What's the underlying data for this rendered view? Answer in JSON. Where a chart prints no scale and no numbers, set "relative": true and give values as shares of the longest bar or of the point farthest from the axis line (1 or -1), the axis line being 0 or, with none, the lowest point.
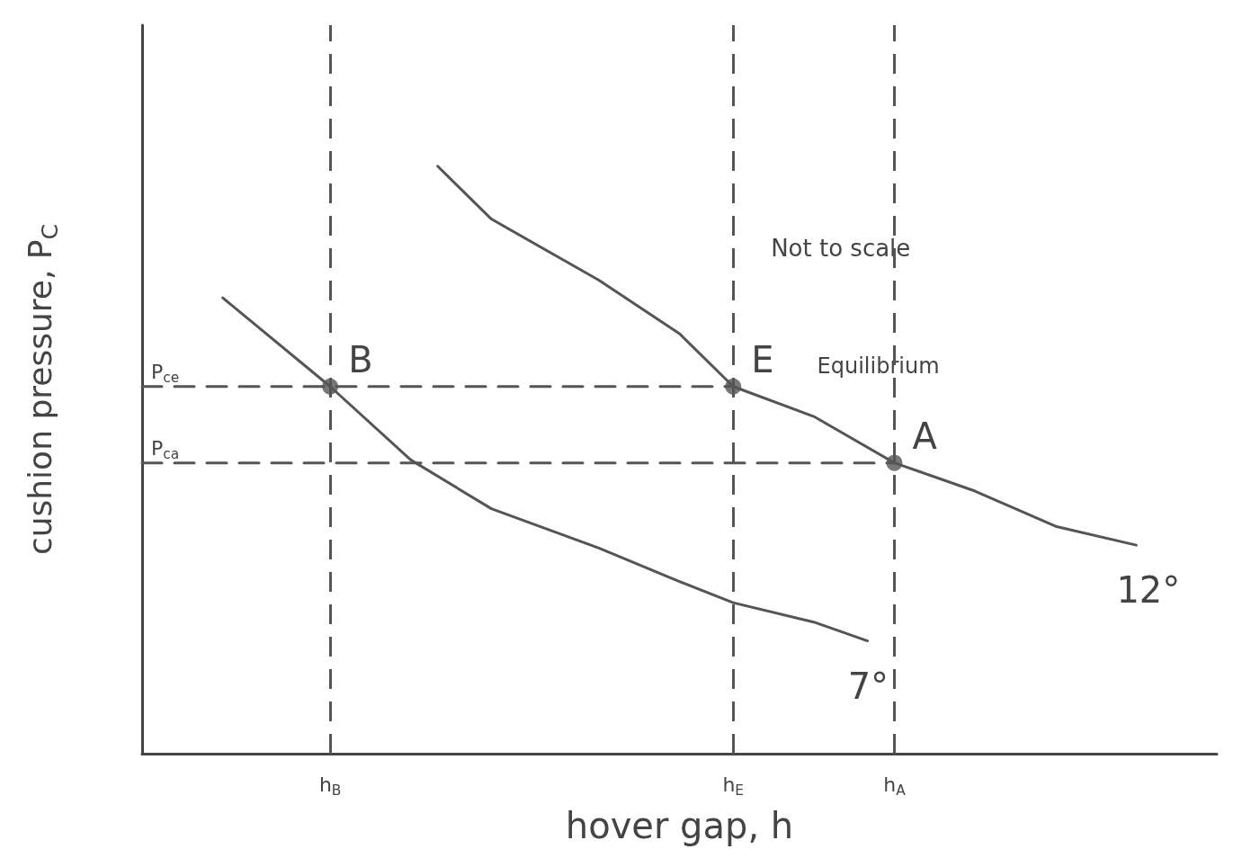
{
  "chart_data": {
    "type": "line",
    "xlabel": "hover gap, h",
    "ylabel": "cushion pressure, P$_{C}$",
    "relative": true,
    "categories": [
      null,
      null,
      null,
      null,
      null,
      null,
      null,
      "h$_{B}$",
      null,
      null,
      null,
      null,
      null,
      null,
      null,
      null,
      null,
      null,
      null,
      null,
      null,
      null,
      "h$_{E}$",
      null,
      null,
      null,
      null,
      null,
      "h$_{A}$",
      null,
      null,
      null,
      null,
      null,
      null,
      null,
      null,
      null,
      null,
      null,
      null
    ],
    "grid": false,
    "legend": false,
    "marker": "none",
    "line_style": "solid",
    "series": [
      {
        "name": "7°",
        "color": "#555555",
        "values": [
          null,
          null,
          null,
          0.776,
          null,
          null,
          null,
          0.625,
          null,
          null,
          0.5,
          null,
          null,
          0.417,
          null,
          null,
          null,
          0.35,
          null,
          null,
          0.293,
          null,
          0.257,
          null,
          null,
          0.224,
          null,
          0.192,
          null,
          null,
          null,
          null,
          null,
          null,
          null,
          null,
          null,
          null,
          null,
          null,
          null
        ]
      },
      {
        "name": "12°",
        "color": "#555555",
        "values": [
          null,
          null,
          null,
          null,
          null,
          null,
          null,
          null,
          null,
          null,
          null,
          1,
          null,
          0.91,
          null,
          null,
          null,
          0.806,
          null,
          null,
          0.715,
          null,
          0.625,
          null,
          null,
          0.574,
          null,
          null,
          0.495,
          null,
          null,
          0.447,
          null,
          null,
          0.387,
          null,
          null,
          0.355,
          null,
          null,
          null
        ]
      },
      {
        "name": "P$_{ce}$",
        "color": "#555555",
        "line_style": "dashed",
        "values": [
          0.625,
          0.625,
          0.625,
          0.625,
          0.625,
          0.625,
          0.625,
          0.625,
          0.625,
          0.625,
          0.625,
          0.625,
          0.625,
          0.625,
          0.625,
          0.625,
          0.625,
          0.625,
          0.625,
          0.625,
          0.625,
          0.625,
          0.625,
          null,
          null,
          null,
          null,
          null,
          null,
          null,
          null,
          null,
          null,
          null,
          null,
          null,
          null,
          null,
          null,
          null,
          null
        ]
      },
      {
        "name": "P$_{ca}$",
        "color": "#555555",
        "line_style": "dashed",
        "values": [
          0.495,
          0.495,
          0.495,
          0.495,
          0.495,
          0.495,
          0.495,
          0.495,
          0.495,
          0.495,
          0.495,
          0.495,
          0.495,
          0.495,
          0.495,
          0.495,
          0.495,
          0.495,
          0.495,
          0.495,
          0.495,
          0.495,
          0.495,
          0.495,
          0.495,
          0.495,
          0.495,
          0.495,
          0.495,
          null,
          null,
          null,
          null,
          null,
          null,
          null,
          null,
          null,
          null,
          null,
          null
        ]
      },
      {
        "type": "scatter",
        "marker": "circle",
        "color": "#555555",
        "x": [
          "h$_{B}$",
          "h$_{E}$",
          "h$_{A}$"
        ],
        "values": [
          0.625,
          0.625,
          0.495
        ]
      }
    ],
    "ref_lines": [
      {
        "axis": "x",
        "value": "h$_{B}$",
        "color": "#555555",
        "line_style": "dashed"
      },
      {
        "axis": "x",
        "value": "h$_{E}$",
        "color": "#555555",
        "line_style": "dashed"
      },
      {
        "axis": "x",
        "value": "h$_{A}$",
        "color": "#555555",
        "line_style": "dashed"
      }
    ],
    "annotations": [
      "Not to scale",
      "Equilibrium",
      {
        "text": "B",
        "x": "h$_{B}$",
        "y": 0.625
      },
      {
        "text": "E",
        "x": "h$_{E}$",
        "y": 0.625
      },
      {
        "text": "A",
        "x": "h$_{A}$",
        "y": 0.495
      }
    ]
  }
}
